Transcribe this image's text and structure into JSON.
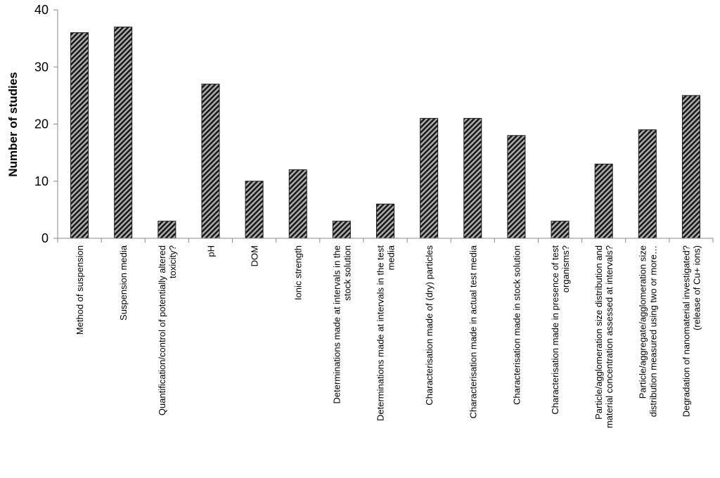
{
  "chart_data": {
    "type": "bar",
    "title": "",
    "xlabel": "",
    "ylabel": "Number of studies",
    "ylim": [
      0,
      40
    ],
    "yticks": [
      0,
      10,
      20,
      30,
      40
    ],
    "grid": false,
    "legend": "none",
    "bar_pattern": "diagonal-hatch",
    "colors": {
      "bar_dark": "#1a1a1a",
      "bar_light": "#b0b0b0",
      "axis": "#888888"
    },
    "categories": [
      [
        "Method of suspension"
      ],
      [
        "Suspension media"
      ],
      [
        "Quantification/control of potentially altered",
        "toxicity?"
      ],
      [
        "pH"
      ],
      [
        "DOM"
      ],
      [
        "Ionic strength"
      ],
      [
        "Determinations made at intervals in the",
        "stock solution"
      ],
      [
        "Determinations made at intervals in the test",
        "media"
      ],
      [
        "Characterisation made of (dry) particles"
      ],
      [
        "Characterisation made in actual test media"
      ],
      [
        "Characterisation made in stock solution"
      ],
      [
        "Characterisation made in presence of test",
        "organisms?"
      ],
      [
        "Particle/agglomeration size distribution and",
        "material concentration assessed at intervals?"
      ],
      [
        "Particle/aggregate/agglomeration size",
        "distribution measured using two or more…"
      ],
      [
        "Degradation of nanomaterial investigated?",
        "(release of Cu+ ions)"
      ]
    ],
    "values": [
      36,
      37,
      3,
      27,
      10,
      12,
      3,
      6,
      21,
      21,
      18,
      3,
      13,
      19,
      25
    ]
  }
}
